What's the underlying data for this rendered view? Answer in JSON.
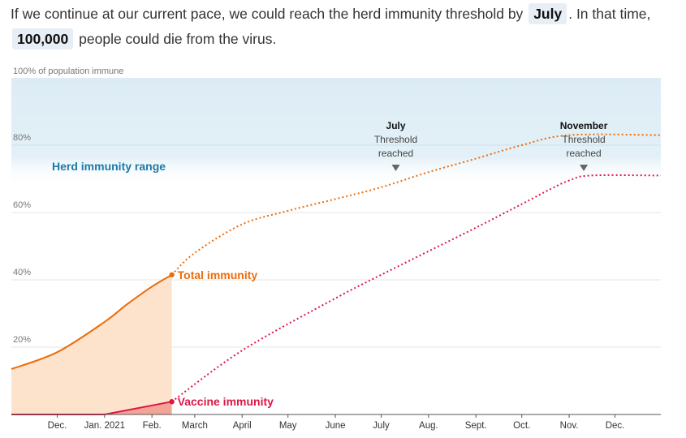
{
  "intro": {
    "part1": "If we continue at our current pace, we could reach the herd immunity threshold by",
    "month": "July",
    "part2": ". In that time,",
    "deaths": "100,000",
    "part3": "people could die from the virus."
  },
  "chart_data": {
    "type": "line",
    "y_top_label": "100% of population immune",
    "ylim": [
      0,
      100
    ],
    "yticks": [
      {
        "value": 80,
        "label": "80%"
      },
      {
        "value": 60,
        "label": "60%"
      },
      {
        "value": 40,
        "label": "40%"
      },
      {
        "value": 20,
        "label": "20%"
      }
    ],
    "xlim": [
      "2020-11-01",
      "2021-12-31"
    ],
    "xticks": [
      {
        "date": "2020-12-01",
        "label": "Dec."
      },
      {
        "date": "2021-01-01",
        "label": "Jan. 2021"
      },
      {
        "date": "2021-02-01",
        "label": "Feb."
      },
      {
        "date": "2021-03-01",
        "label": "March"
      },
      {
        "date": "2021-04-01",
        "label": "April"
      },
      {
        "date": "2021-05-01",
        "label": "May"
      },
      {
        "date": "2021-06-01",
        "label": "June"
      },
      {
        "date": "2021-07-01",
        "label": "July"
      },
      {
        "date": "2021-08-01",
        "label": "Aug."
      },
      {
        "date": "2021-09-01",
        "label": "Sept."
      },
      {
        "date": "2021-10-01",
        "label": "Oct."
      },
      {
        "date": "2021-11-01",
        "label": "Nov."
      },
      {
        "date": "2021-12-01",
        "label": "Dec."
      }
    ],
    "herd_immunity_range": {
      "label": "Herd immunity range",
      "from": 70,
      "to": 100,
      "color": "#dcecf5",
      "label_color": "#1d7aa8"
    },
    "series": [
      {
        "name": "Total immunity",
        "color": "#ec6c0b",
        "fill": "#fde2cc",
        "actual": [
          {
            "date": "2020-11-01",
            "value": 13.5
          },
          {
            "date": "2020-12-01",
            "value": 18.5
          },
          {
            "date": "2021-01-01",
            "value": 27.5
          },
          {
            "date": "2021-01-15",
            "value": 32.5
          },
          {
            "date": "2021-02-01",
            "value": 38.0
          },
          {
            "date": "2021-02-14",
            "value": 41.5
          }
        ],
        "projected": [
          {
            "date": "2021-02-14",
            "value": 41.5
          },
          {
            "date": "2021-03-01",
            "value": 48
          },
          {
            "date": "2021-04-01",
            "value": 56.5
          },
          {
            "date": "2021-05-01",
            "value": 60.5
          },
          {
            "date": "2021-06-01",
            "value": 64
          },
          {
            "date": "2021-07-01",
            "value": 67.5
          },
          {
            "date": "2021-08-01",
            "value": 72
          },
          {
            "date": "2021-09-01",
            "value": 76
          },
          {
            "date": "2021-10-01",
            "value": 80
          },
          {
            "date": "2021-11-01",
            "value": 83
          },
          {
            "date": "2021-12-31",
            "value": 83
          }
        ]
      },
      {
        "name": "Vaccine immunity",
        "color": "#dc1747",
        "fill": "#f4a497",
        "actual": [
          {
            "date": "2020-11-01",
            "value": 0
          },
          {
            "date": "2021-01-01",
            "value": 0
          },
          {
            "date": "2021-02-14",
            "value": 3.8
          }
        ],
        "projected": [
          {
            "date": "2021-02-14",
            "value": 3.8
          },
          {
            "date": "2021-04-01",
            "value": 19
          },
          {
            "date": "2021-06-01",
            "value": 34.5
          },
          {
            "date": "2021-07-01",
            "value": 41.5
          },
          {
            "date": "2021-08-01",
            "value": 48.5
          },
          {
            "date": "2021-09-01",
            "value": 55.5
          },
          {
            "date": "2021-10-01",
            "value": 62.5
          },
          {
            "date": "2021-10-20",
            "value": 67
          },
          {
            "date": "2021-11-01",
            "value": 69.5
          },
          {
            "date": "2021-11-15",
            "value": 71
          },
          {
            "date": "2021-12-31",
            "value": 71
          }
        ]
      }
    ],
    "annotations": [
      {
        "month": "July",
        "line1": "Threshold",
        "line2": "reached",
        "date": "2021-07-01"
      },
      {
        "month": "November",
        "line1": "Threshold",
        "line2": "reached",
        "date": "2021-11-01"
      }
    ]
  }
}
